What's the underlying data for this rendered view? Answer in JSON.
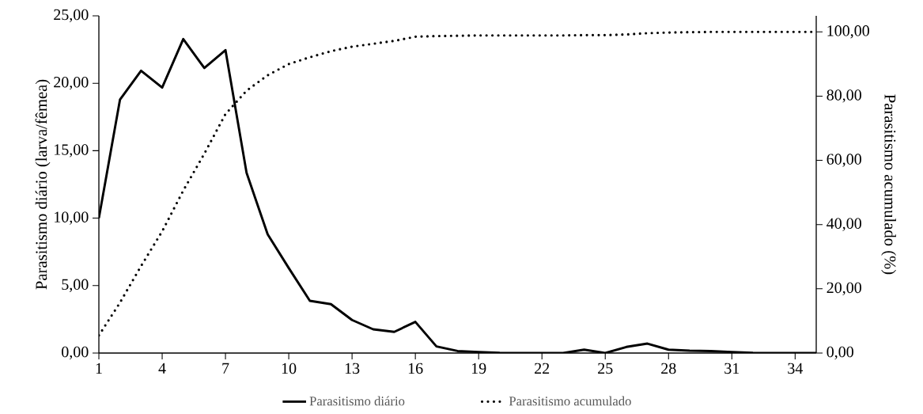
{
  "chart_data": {
    "type": "line",
    "x": [
      1,
      2,
      3,
      4,
      5,
      6,
      7,
      8,
      9,
      10,
      11,
      12,
      13,
      14,
      15,
      16,
      17,
      18,
      19,
      20,
      21,
      22,
      23,
      24,
      25,
      26,
      27,
      28,
      29,
      30,
      31,
      32,
      33,
      34,
      35
    ],
    "xlim": [
      1,
      35
    ],
    "xticks": [
      1,
      4,
      7,
      10,
      13,
      16,
      19,
      22,
      25,
      28,
      31,
      34
    ],
    "ylim": [
      0,
      25
    ],
    "yticks": [
      {
        "value": 0,
        "label": "0,00"
      },
      {
        "value": 5,
        "label": "5,00"
      },
      {
        "value": 10,
        "label": "10,00"
      },
      {
        "value": 15,
        "label": "15,00"
      },
      {
        "value": 20,
        "label": "20,00"
      },
      {
        "value": 25,
        "label": "25,00"
      }
    ],
    "y2lim": [
      0,
      105
    ],
    "y2ticks": [
      {
        "value": 0,
        "label": "0,00"
      },
      {
        "value": 20,
        "label": "20,00"
      },
      {
        "value": 40,
        "label": "40,00"
      },
      {
        "value": 60,
        "label": "60,00"
      },
      {
        "value": 80,
        "label": "80,00"
      },
      {
        "value": 100,
        "label": "100,00"
      }
    ],
    "ylabel": "Parasitismo diário (larva/fêmea)",
    "y2label": "Parasitismo acumulado  (%)",
    "legend": "bottom",
    "series": [
      {
        "name": "Parasitismo diário",
        "color": "#000000",
        "line_style": "solid",
        "values": [
          10.0,
          18.78,
          20.93,
          19.68,
          23.28,
          21.13,
          22.46,
          13.36,
          8.8,
          6.3,
          3.87,
          3.62,
          2.45,
          1.76,
          1.57,
          2.31,
          0.49,
          0.15,
          0.08,
          0.02,
          0,
          0,
          0,
          0.25,
          0,
          0.45,
          0.7,
          0.25,
          0.18,
          0.15,
          0.08,
          0.02,
          0,
          0,
          0
        ]
      },
      {
        "name": "Parasitismo acumulado",
        "color": "#000000",
        "line_style": "dotted",
        "axis": "y2",
        "values": [
          5.5,
          15.7,
          27.1,
          37.9,
          50.6,
          62.1,
          74.4,
          81.7,
          86.5,
          90.0,
          92.1,
          94.0,
          95.4,
          96.3,
          97.2,
          98.5,
          98.7,
          98.8,
          98.9,
          98.9,
          98.9,
          98.9,
          98.9,
          99.0,
          99.0,
          99.2,
          99.6,
          99.8,
          99.9,
          100,
          100,
          100,
          100,
          100,
          100
        ]
      }
    ]
  }
}
